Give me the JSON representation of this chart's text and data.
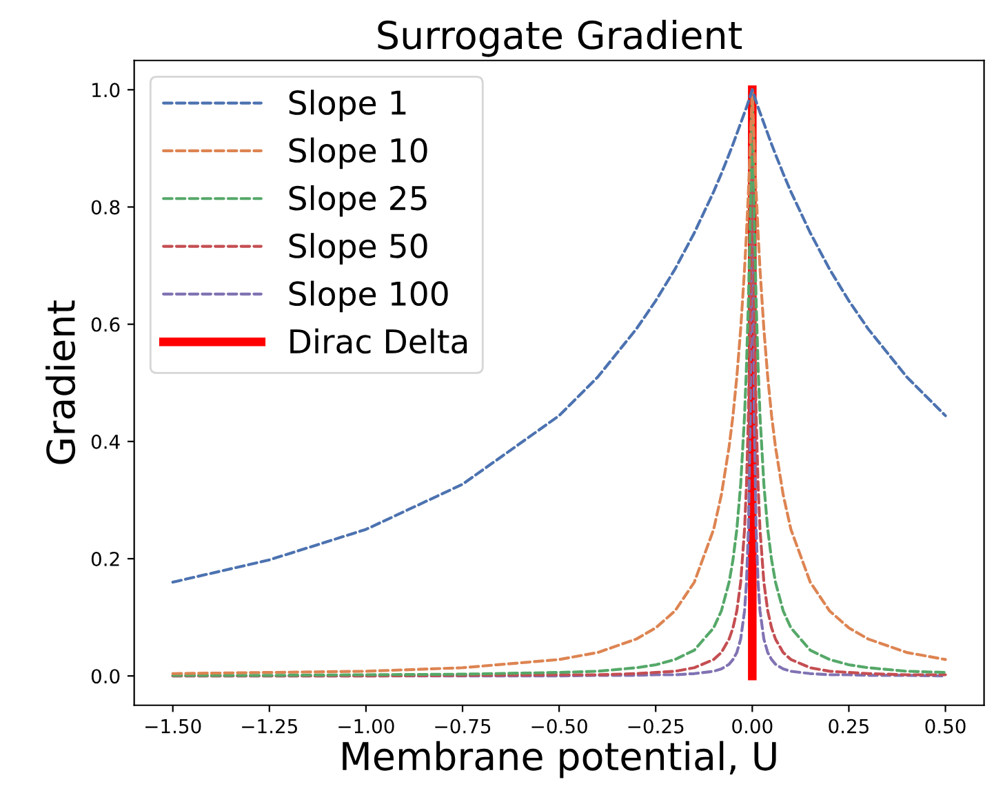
{
  "chart_data": {
    "type": "line",
    "title": "Surrogate Gradient",
    "xlabel": "Membrane potential, U",
    "ylabel": "Gradient",
    "x": [
      -1.5,
      -1.25,
      -1,
      -0.75,
      -0.5,
      -0.4,
      -0.3,
      -0.25,
      -0.2,
      -0.15,
      -0.1,
      -0.08,
      -0.06,
      -0.05,
      -0.04,
      -0.03,
      -0.02,
      -0.015,
      -0.01,
      -0.005,
      0,
      0.005,
      0.01,
      0.015,
      0.02,
      0.03,
      0.04,
      0.05,
      0.06,
      0.08,
      0.1,
      0.15,
      0.2,
      0.25,
      0.3,
      0.4,
      0.5
    ],
    "series": [
      {
        "name": "Slope 1",
        "color": "#4c72b0",
        "line_style": "dashed",
        "values": [
          0.16,
          0.198,
          0.25,
          0.327,
          0.444,
          0.51,
          0.592,
          0.64,
          0.694,
          0.756,
          0.826,
          0.857,
          0.89,
          0.907,
          0.925,
          0.943,
          0.961,
          0.97,
          0.98,
          0.99,
          1,
          0.99,
          0.98,
          0.97,
          0.961,
          0.943,
          0.925,
          0.907,
          0.89,
          0.857,
          0.826,
          0.756,
          0.694,
          0.64,
          0.592,
          0.51,
          0.444
        ]
      },
      {
        "name": "Slope 10",
        "color": "#dd8452",
        "line_style": "dashed",
        "values": [
          0.004,
          0.006,
          0.008,
          0.014,
          0.028,
          0.04,
          0.063,
          0.082,
          0.111,
          0.16,
          0.25,
          0.309,
          0.391,
          0.444,
          0.51,
          0.592,
          0.694,
          0.756,
          0.826,
          0.907,
          1,
          0.907,
          0.826,
          0.756,
          0.694,
          0.592,
          0.51,
          0.444,
          0.391,
          0.309,
          0.25,
          0.16,
          0.111,
          0.082,
          0.063,
          0.04,
          0.028
        ]
      },
      {
        "name": "Slope 25",
        "color": "#55a868",
        "line_style": "dashed",
        "values": [
          0.001,
          0.001,
          0.002,
          0.003,
          0.006,
          0.008,
          0.014,
          0.019,
          0.028,
          0.044,
          0.082,
          0.111,
          0.16,
          0.198,
          0.25,
          0.327,
          0.444,
          0.529,
          0.64,
          0.79,
          1,
          0.79,
          0.64,
          0.529,
          0.444,
          0.327,
          0.25,
          0.198,
          0.16,
          0.111,
          0.082,
          0.044,
          0.028,
          0.019,
          0.014,
          0.008,
          0.006
        ]
      },
      {
        "name": "Slope 50",
        "color": "#c44e52",
        "line_style": "dashed",
        "values": [
          0,
          0,
          0,
          0.001,
          0.002,
          0.002,
          0.004,
          0.006,
          0.008,
          0.014,
          0.028,
          0.04,
          0.063,
          0.082,
          0.111,
          0.16,
          0.25,
          0.327,
          0.444,
          0.64,
          1,
          0.64,
          0.444,
          0.327,
          0.25,
          0.16,
          0.111,
          0.082,
          0.063,
          0.04,
          0.028,
          0.014,
          0.008,
          0.006,
          0.004,
          0.002,
          0.002
        ]
      },
      {
        "name": "Slope 100",
        "color": "#8172b3",
        "line_style": "dashed",
        "values": [
          0,
          0,
          0,
          0,
          0,
          0.001,
          0.001,
          0.002,
          0.002,
          0.004,
          0.008,
          0.012,
          0.02,
          0.028,
          0.04,
          0.063,
          0.111,
          0.16,
          0.25,
          0.444,
          1,
          0.444,
          0.25,
          0.16,
          0.111,
          0.063,
          0.04,
          0.028,
          0.02,
          0.012,
          0.008,
          0.004,
          0.002,
          0.002,
          0.001,
          0.001,
          0
        ]
      },
      {
        "name": "Dirac Delta",
        "color": "#ff0000",
        "line_style": "solid",
        "x": [
          0,
          0
        ],
        "values": [
          0,
          1
        ]
      }
    ],
    "xlim": [
      -1.6,
      0.6
    ],
    "ylim": [
      -0.05,
      1.05
    ],
    "xticks": [
      {
        "value": -1.5,
        "label": "−1.50"
      },
      {
        "value": -1.25,
        "label": "−1.25"
      },
      {
        "value": -1.0,
        "label": "−1.00"
      },
      {
        "value": -0.75,
        "label": "−0.75"
      },
      {
        "value": -0.5,
        "label": "−0.50"
      },
      {
        "value": -0.25,
        "label": "−0.25"
      },
      {
        "value": 0,
        "label": "0.00"
      },
      {
        "value": 0.25,
        "label": "0.25"
      },
      {
        "value": 0.5,
        "label": "0.50"
      }
    ],
    "yticks": [
      {
        "value": 0,
        "label": "0.0"
      },
      {
        "value": 0.2,
        "label": "0.2"
      },
      {
        "value": 0.4,
        "label": "0.4"
      },
      {
        "value": 0.6,
        "label": "0.6"
      },
      {
        "value": 0.8,
        "label": "0.8"
      },
      {
        "value": 1.0,
        "label": "1.0"
      }
    ],
    "grid": false,
    "legend": "top left"
  }
}
